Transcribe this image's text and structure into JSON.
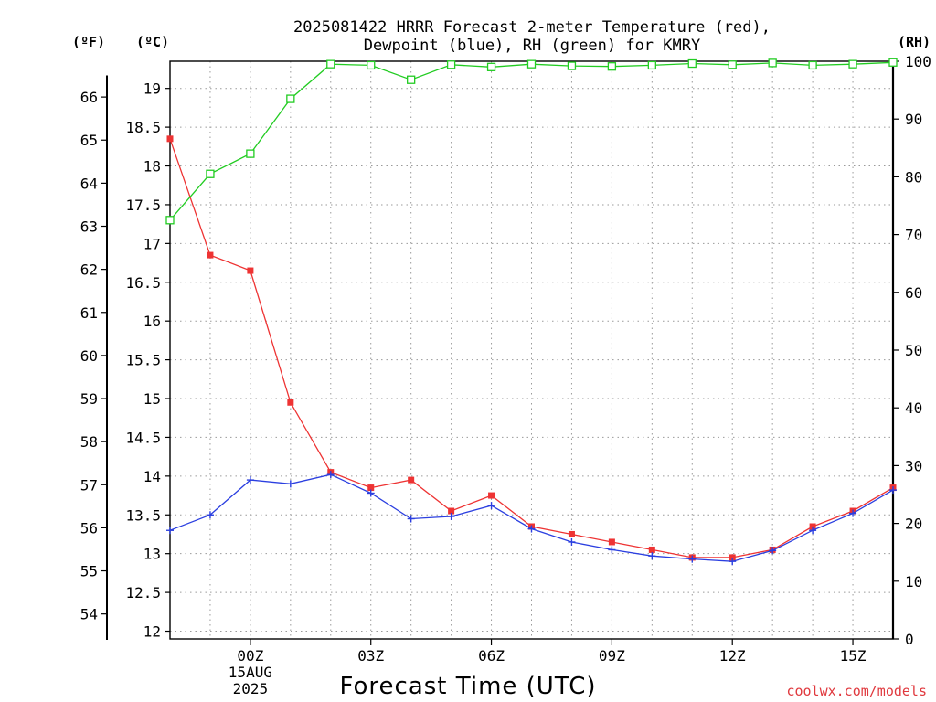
{
  "chart_data": {
    "type": "line",
    "title_line1": "2025081422 HRRR Forecast 2-meter Temperature (red),",
    "title_line2": "Dewpoint (blue), RH (green) for KMRY",
    "units": {
      "fahrenheit": "(ºF)",
      "celsius": "(ºC)",
      "rh": "(RH)"
    },
    "xlabel": "Forecast Time (UTC)",
    "credit": "coolwx.com/models",
    "x_hours": [
      -2,
      -1,
      0,
      1,
      2,
      3,
      4,
      5,
      6,
      7,
      8,
      9,
      10,
      11,
      12,
      13,
      14,
      15,
      16
    ],
    "x_tick_labels": [
      {
        "hour": 0,
        "label": "00Z",
        "date": "15AUG",
        "year": "2025"
      },
      {
        "hour": 3,
        "label": "03Z"
      },
      {
        "hour": 6,
        "label": "06Z"
      },
      {
        "hour": 9,
        "label": "09Z"
      },
      {
        "hour": 12,
        "label": "12Z"
      },
      {
        "hour": 15,
        "label": "15Z"
      }
    ],
    "xlim": [
      -2,
      16
    ],
    "ylim_c": [
      11.9,
      19.35
    ],
    "ylim_rh": [
      0,
      100
    ],
    "yticks_c": [
      "12",
      "12.5",
      "13",
      "13.5",
      "14",
      "14.5",
      "15",
      "15.5",
      "16",
      "16.5",
      "17",
      "17.5",
      "18",
      "18.5",
      "19"
    ],
    "yticks_f": [
      "54",
      "55",
      "56",
      "57",
      "58",
      "59",
      "60",
      "61",
      "62",
      "63",
      "64",
      "65",
      "66"
    ],
    "yticks_rh": [
      "0",
      "10",
      "20",
      "30",
      "40",
      "50",
      "60",
      "70",
      "80",
      "90",
      "100"
    ],
    "grid": true,
    "series": [
      {
        "key": "temperature",
        "color": "#ee3333",
        "marker": "filled-square",
        "axis": "celsius",
        "values": [
          18.35,
          16.85,
          16.65,
          14.95,
          14.05,
          13.85,
          13.95,
          13.55,
          13.75,
          13.35,
          13.25,
          13.15,
          13.05,
          12.95,
          12.95,
          13.05,
          13.35,
          13.55,
          13.85
        ]
      },
      {
        "key": "dewpoint",
        "color": "#2b3fe0",
        "marker": "plus",
        "axis": "celsius",
        "values": [
          13.3,
          13.5,
          13.95,
          13.9,
          14.02,
          13.78,
          13.45,
          13.48,
          13.62,
          13.32,
          13.15,
          13.05,
          12.97,
          12.93,
          12.9,
          13.04,
          13.3,
          13.52,
          13.82
        ]
      },
      {
        "key": "relative_humidity",
        "color": "#22cc22",
        "marker": "open-square",
        "axis": "rh",
        "values": [
          72.5,
          80.5,
          84,
          93.5,
          99.5,
          99.3,
          96.8,
          99.4,
          99,
          99.5,
          99.2,
          99.1,
          99.3,
          99.6,
          99.4,
          99.7,
          99.3,
          99.5,
          99.8
        ]
      }
    ]
  }
}
